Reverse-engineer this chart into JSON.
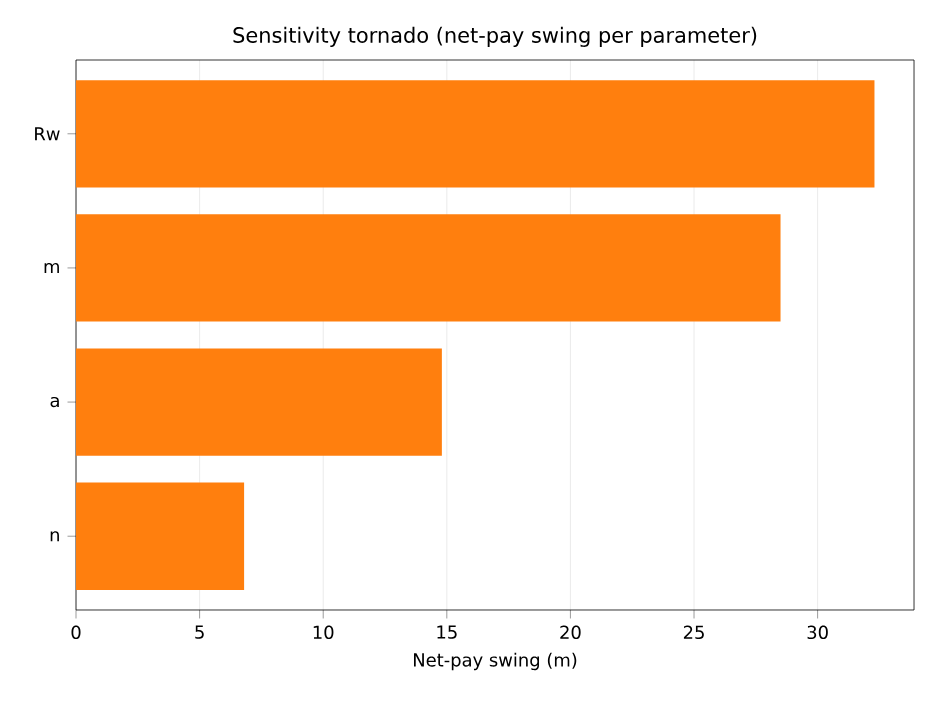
{
  "chart_data": {
    "type": "bar",
    "orientation": "horizontal",
    "title": "Sensitivity tornado (net-pay swing per parameter)",
    "xlabel": "Net-pay swing (m)",
    "categories": [
      "Rw",
      "m",
      "a",
      "n"
    ],
    "values": [
      32.3,
      28.5,
      14.8,
      6.8
    ],
    "color": "#ff7f0e",
    "xlim": [
      0,
      33.9
    ],
    "xticks": [
      0,
      5,
      10,
      15,
      20,
      25,
      30
    ],
    "grid": "x"
  }
}
